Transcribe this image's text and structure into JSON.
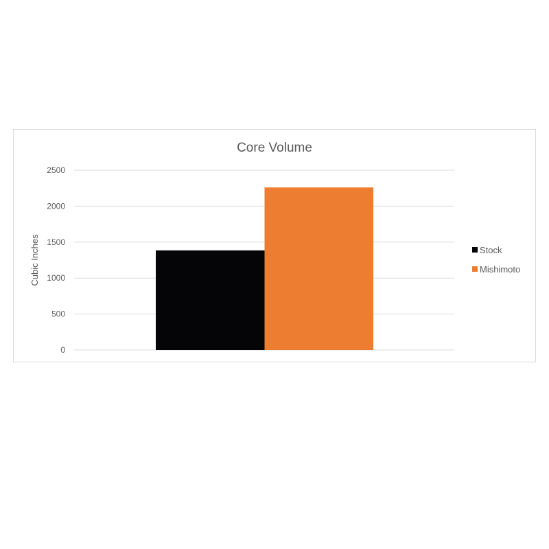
{
  "chart_data": {
    "type": "bar",
    "title": "Core Volume",
    "xlabel": "",
    "ylabel": "Cubic Inches",
    "ylim": [
      0,
      2500
    ],
    "yticks": [
      0,
      500,
      1000,
      1500,
      2000,
      2500
    ],
    "grid": true,
    "legend_position": "right",
    "categories": [
      ""
    ],
    "series": [
      {
        "name": "Stock",
        "values": [
          1385
        ],
        "color": "#050507"
      },
      {
        "name": "Mishimoto",
        "values": [
          2260
        ],
        "color": "#ed7d31"
      }
    ]
  }
}
